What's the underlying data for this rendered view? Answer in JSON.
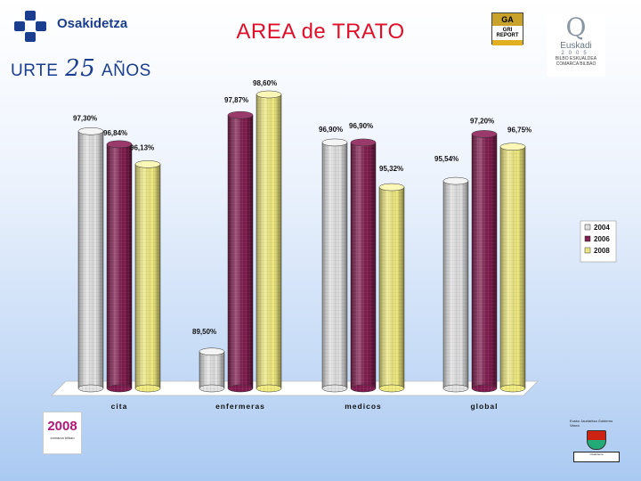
{
  "header": {
    "brand": "Osakidetza",
    "anniversary_left": "URTE",
    "anniversary_num": "25",
    "anniversary_right": "AÑOS",
    "title": "AREA  de TRATO",
    "qa_logo_top": "GA",
    "qa_logo_mid": "GRI REPORT",
    "euskadi_word": "Euskadi",
    "euskadi_year": "2005",
    "euskadi_sub1": "BILBO ESKUALDEA",
    "euskadi_sub2": "COMARCA BILBAO"
  },
  "footer": {
    "logo_left_num": "2008",
    "logo_left_text": "comarca bilbao",
    "gov_text": "Eusko Jaurlaritza Gobierno Vasco",
    "gov_box": "Osakidetza"
  },
  "colors": {
    "s2004": "#dcdcdc",
    "s2006": "#7a1a4a",
    "s2008": "#f2ec8a"
  },
  "chart_data": {
    "type": "bar",
    "title": "AREA  de TRATO",
    "categories": [
      "cita",
      "enfermeras",
      "medicos",
      "global"
    ],
    "series": [
      {
        "name": "2004",
        "values": [
          97.3,
          89.5,
          96.9,
          95.54
        ],
        "labels": [
          "97,30%",
          "89,50%",
          "96,90%",
          "95,54%"
        ]
      },
      {
        "name": "2006",
        "values": [
          96.84,
          97.87,
          96.9,
          97.2
        ],
        "labels": [
          "96,84%",
          "97,87%",
          "96,90%",
          "97,20%"
        ]
      },
      {
        "name": "2008",
        "values": [
          96.13,
          98.6,
          95.32,
          96.75
        ],
        "labels": [
          "96,13%",
          "98,60%",
          "95,32%",
          "96,75%"
        ]
      }
    ],
    "legend_position": "right",
    "grid": false
  }
}
